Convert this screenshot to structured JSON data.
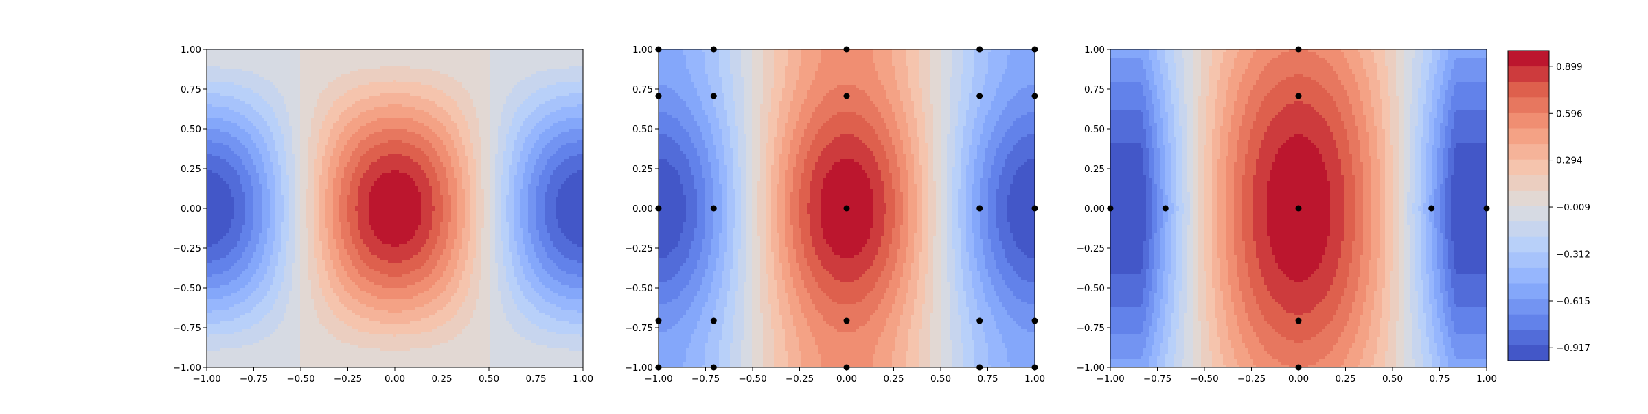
{
  "chart_data": [
    {
      "type": "heatmap",
      "subtype": "filled-contour",
      "panel": 1,
      "xlim": [
        -1.0,
        1.0
      ],
      "ylim": [
        -1.0,
        1.0
      ],
      "xticks": [
        "−1.00",
        "−0.75",
        "−0.50",
        "−0.25",
        "0.00",
        "0.25",
        "0.50",
        "0.75",
        "1.00"
      ],
      "yticks": [
        "−1.00",
        "−0.75",
        "−0.50",
        "−0.25",
        "0.00",
        "0.25",
        "0.50",
        "0.75",
        "1.00"
      ],
      "field": "exact",
      "points": []
    },
    {
      "type": "heatmap",
      "subtype": "filled-contour",
      "panel": 2,
      "xlim": [
        -1.0,
        1.0
      ],
      "ylim": [
        -1.0,
        1.0
      ],
      "xticks": [
        "−1.00",
        "−0.75",
        "−0.50",
        "−0.25",
        "0.00",
        "0.25",
        "0.50",
        "0.75",
        "1.00"
      ],
      "yticks": [
        "−1.00",
        "−0.75",
        "−0.50",
        "−0.25",
        "0.00",
        "0.25",
        "0.50",
        "0.75",
        "1.00"
      ],
      "field": "interp-grid",
      "points": [
        [
          -1,
          -1
        ],
        [
          -0.707,
          -1
        ],
        [
          0,
          -1
        ],
        [
          0.707,
          -1
        ],
        [
          1,
          -1
        ],
        [
          -1,
          -0.707
        ],
        [
          -0.707,
          -0.707
        ],
        [
          0,
          -0.707
        ],
        [
          0.707,
          -0.707
        ],
        [
          1,
          -0.707
        ],
        [
          -1,
          0
        ],
        [
          -0.707,
          0
        ],
        [
          0,
          0
        ],
        [
          0.707,
          0
        ],
        [
          1,
          0
        ],
        [
          -1,
          0.707
        ],
        [
          -0.707,
          0.707
        ],
        [
          0,
          0.707
        ],
        [
          0.707,
          0.707
        ],
        [
          1,
          0.707
        ],
        [
          -1,
          1
        ],
        [
          -0.707,
          1
        ],
        [
          0,
          1
        ],
        [
          0.707,
          1
        ],
        [
          1,
          1
        ]
      ]
    },
    {
      "type": "heatmap",
      "subtype": "filled-contour",
      "panel": 3,
      "xlim": [
        -1.0,
        1.0
      ],
      "ylim": [
        -1.0,
        1.0
      ],
      "xticks": [
        "−1.00",
        "−0.75",
        "−0.50",
        "−0.25",
        "0.00",
        "0.25",
        "0.50",
        "0.75",
        "1.00"
      ],
      "yticks": [
        "−1.00",
        "−0.75",
        "−0.50",
        "−0.25",
        "0.00",
        "0.25",
        "0.50",
        "0.75",
        "1.00"
      ],
      "field": "interp-cross",
      "points": [
        [
          -1,
          0
        ],
        [
          -0.707,
          0
        ],
        [
          0,
          0
        ],
        [
          0.707,
          0
        ],
        [
          1,
          0
        ],
        [
          0,
          -1
        ],
        [
          0,
          -0.707
        ],
        [
          0,
          0.707
        ],
        [
          0,
          1
        ]
      ]
    }
  ],
  "colorbar": {
    "vmin": -1.0,
    "vmax": 1.0,
    "levels": 20,
    "tick_values": [
      0.899,
      0.596,
      0.294,
      -0.009,
      -0.312,
      -0.615,
      -0.917
    ],
    "tick_labels": [
      "0.899",
      "0.596",
      "0.294",
      "−0.009",
      "−0.312",
      "−0.615",
      "−0.917"
    ],
    "colormap": "coolwarm"
  }
}
